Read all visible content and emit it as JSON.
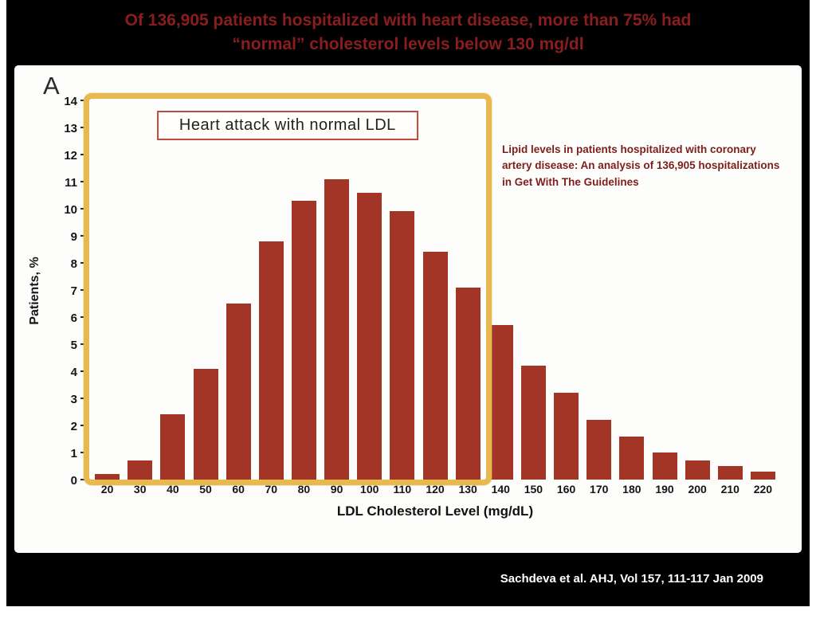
{
  "slide": {
    "title_line1": "Of 136,905 patients hospitalized with heart disease, more than 75% had",
    "title_line2": "“normal” cholesterol levels below 130 mg/dl",
    "citation": "Sachdeva et al. AHJ, Vol 157, 111-117 Jan 2009"
  },
  "panel": {
    "label": "A",
    "annotation": "Lipid levels in patients hospitalized with coronary artery disease: An analysis of 136,905 hospitalizations in Get With The Guidelines"
  },
  "chart_data": {
    "type": "bar",
    "title": "Of 136,905 patients hospitalized with heart disease, more than 75% had “normal” cholesterol levels below 130 mg/dl",
    "xlabel": "LDL Cholesterol Level (mg/dL)",
    "ylabel": "Patients, %",
    "categories": [
      20,
      30,
      40,
      50,
      60,
      70,
      80,
      90,
      100,
      110,
      120,
      130,
      140,
      150,
      160,
      170,
      180,
      190,
      200,
      210,
      220
    ],
    "values": [
      0.2,
      0.7,
      2.4,
      4.1,
      6.5,
      8.8,
      10.3,
      11.1,
      10.6,
      9.9,
      8.4,
      7.1,
      5.7,
      4.2,
      3.2,
      2.2,
      1.6,
      1.0,
      0.7,
      0.5,
      0.3
    ],
    "ylim": [
      0,
      14
    ],
    "ytick_step": 1,
    "grid": false,
    "legend": "none",
    "highlight": {
      "from_category": 20,
      "to_category": 130,
      "label": "Heart attack with normal LDL",
      "border_color": "#e8b94f"
    }
  },
  "colors": {
    "page_background": "#000000",
    "panel_background": "#fdfdfb",
    "title_text": "#8a1e1e",
    "bar": "#a33527",
    "highlight_border": "#e8b94f",
    "callout_border": "#bf4a3f",
    "annotation_text": "#7c1f1c",
    "citation_text": "#ffffff",
    "axis_text": "#151515"
  }
}
